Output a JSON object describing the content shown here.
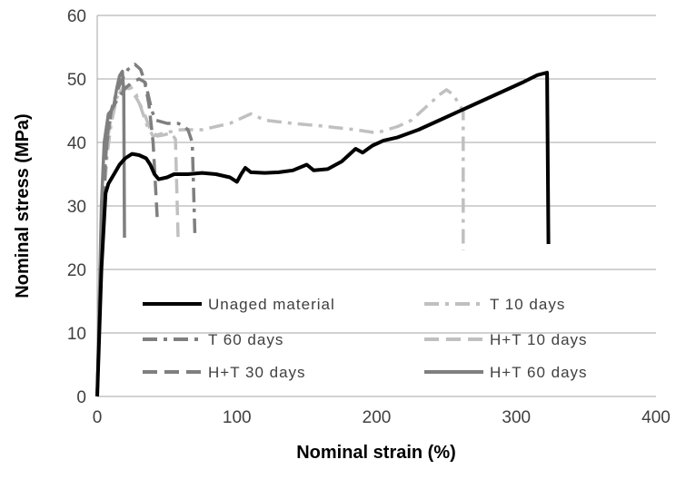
{
  "chart_data": {
    "type": "line",
    "xlabel": "Nominal strain (%)",
    "ylabel": "Nominal stress (MPa)",
    "xlim": [
      0,
      400
    ],
    "ylim": [
      0,
      60
    ],
    "x_ticks": [
      "0",
      "100",
      "200",
      "300",
      "400"
    ],
    "y_ticks": [
      "0",
      "10",
      "20",
      "30",
      "40",
      "50",
      "60"
    ],
    "grid": "horizontal",
    "legend_position": "bottom-inside",
    "series": [
      {
        "name": "Unaged material",
        "color": "#000000",
        "dash": "solid",
        "points": [
          [
            0,
            0
          ],
          [
            3,
            20
          ],
          [
            6,
            32
          ],
          [
            8,
            33.5
          ],
          [
            12,
            35
          ],
          [
            16,
            36.5
          ],
          [
            20,
            37.5
          ],
          [
            25,
            38.2
          ],
          [
            30,
            38
          ],
          [
            35,
            37.5
          ],
          [
            38,
            36.5
          ],
          [
            41,
            35
          ],
          [
            44,
            34.2
          ],
          [
            50,
            34.5
          ],
          [
            55,
            35
          ],
          [
            65,
            35
          ],
          [
            75,
            35.2
          ],
          [
            85,
            35
          ],
          [
            95,
            34.5
          ],
          [
            100,
            33.8
          ],
          [
            103,
            35
          ],
          [
            106,
            36
          ],
          [
            110,
            35.3
          ],
          [
            120,
            35.2
          ],
          [
            130,
            35.3
          ],
          [
            140,
            35.6
          ],
          [
            150,
            36.5
          ],
          [
            155,
            35.6
          ],
          [
            165,
            35.8
          ],
          [
            175,
            37
          ],
          [
            185,
            39
          ],
          [
            190,
            38.4
          ],
          [
            197,
            39.5
          ],
          [
            205,
            40.3
          ],
          [
            215,
            40.8
          ],
          [
            230,
            42
          ],
          [
            250,
            44
          ],
          [
            270,
            46
          ],
          [
            290,
            48
          ],
          [
            305,
            49.5
          ],
          [
            315,
            50.6
          ],
          [
            322,
            51
          ],
          [
            323,
            24
          ]
        ]
      },
      {
        "name": "T 10 days",
        "color": "#c0c0c0",
        "dash": "dashdot",
        "points": [
          [
            0,
            0
          ],
          [
            4,
            28
          ],
          [
            7,
            38
          ],
          [
            10,
            43
          ],
          [
            14,
            47
          ],
          [
            18,
            48.5
          ],
          [
            23,
            49
          ],
          [
            28,
            47.5
          ],
          [
            32,
            45
          ],
          [
            36,
            42.5
          ],
          [
            40,
            41
          ],
          [
            48,
            41.5
          ],
          [
            60,
            42
          ],
          [
            75,
            42
          ],
          [
            95,
            43
          ],
          [
            110,
            44.5
          ],
          [
            120,
            43.5
          ],
          [
            140,
            43
          ],
          [
            160,
            42.6
          ],
          [
            185,
            42
          ],
          [
            200,
            41.5
          ],
          [
            215,
            42.5
          ],
          [
            225,
            43.5
          ],
          [
            235,
            45.5
          ],
          [
            245,
            47.5
          ],
          [
            250,
            48.3
          ],
          [
            255,
            47.5
          ],
          [
            259,
            46
          ],
          [
            262,
            45
          ],
          [
            262,
            23
          ]
        ]
      },
      {
        "name": "T 60 days",
        "color": "#7f7f7f",
        "dash": "dashdot",
        "points": [
          [
            0,
            0
          ],
          [
            4,
            30
          ],
          [
            7,
            40
          ],
          [
            10,
            45
          ],
          [
            14,
            48
          ],
          [
            18,
            50
          ],
          [
            22,
            51.5
          ],
          [
            27,
            52.3
          ],
          [
            31,
            51.5
          ],
          [
            35,
            49
          ],
          [
            39,
            45
          ],
          [
            42,
            43.5
          ],
          [
            50,
            43
          ],
          [
            58,
            43
          ],
          [
            62,
            42.5
          ],
          [
            65,
            42
          ],
          [
            68,
            40
          ],
          [
            70,
            25
          ]
        ]
      },
      {
        "name": "H+T 10 days",
        "color": "#c0c0c0",
        "dash": "dash",
        "points": [
          [
            0,
            0
          ],
          [
            4,
            30
          ],
          [
            7,
            40
          ],
          [
            10,
            44
          ],
          [
            14,
            47
          ],
          [
            18,
            48.5
          ],
          [
            23,
            48.5
          ],
          [
            28,
            47
          ],
          [
            33,
            45
          ],
          [
            38,
            42
          ],
          [
            43,
            41
          ],
          [
            48,
            41.2
          ],
          [
            53,
            41.5
          ],
          [
            56,
            40.5
          ],
          [
            58,
            24
          ]
        ]
      },
      {
        "name": "H+T 30 days",
        "color": "#7f7f7f",
        "dash": "dash",
        "points": [
          [
            0,
            0
          ],
          [
            4,
            32
          ],
          [
            7,
            41
          ],
          [
            10,
            45
          ],
          [
            15,
            47
          ],
          [
            20,
            48.5
          ],
          [
            25,
            49.5
          ],
          [
            30,
            50
          ],
          [
            34,
            49.5
          ],
          [
            37,
            46
          ],
          [
            40,
            40
          ],
          [
            43,
            28
          ]
        ]
      },
      {
        "name": "H+T 60 days",
        "color": "#7f7f7f",
        "dash": "solid",
        "points": [
          [
            0,
            0
          ],
          [
            3,
            30
          ],
          [
            5,
            40
          ],
          [
            8,
            44.5
          ],
          [
            10,
            45
          ],
          [
            12,
            46
          ],
          [
            14,
            48.5
          ],
          [
            16,
            50.5
          ],
          [
            18,
            51.2
          ],
          [
            19,
            48
          ],
          [
            19.5,
            25
          ]
        ]
      }
    ]
  }
}
